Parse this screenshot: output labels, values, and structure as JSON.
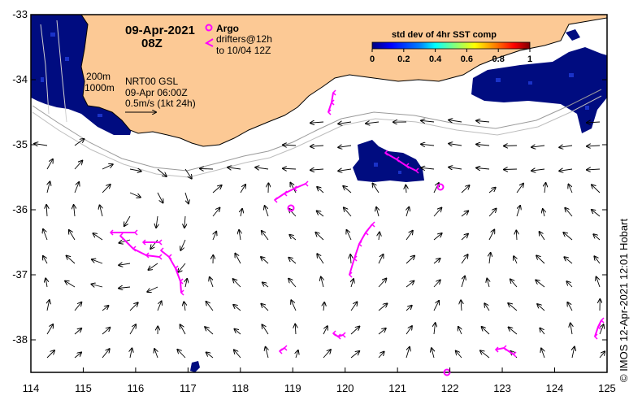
{
  "header": {
    "date": "09-Apr-2021",
    "time": "08Z"
  },
  "legend": {
    "argo_label": "Argo",
    "drifter_line1": "drifters@12h",
    "drifter_line2": "to 10/04 12Z",
    "argo_color": "#ff00ff",
    "drifter_color": "#ff00ff"
  },
  "colorbar": {
    "title": "std dev of 4hr SST comp",
    "ticks": [
      "0",
      "0.2",
      "0.4",
      "0.6",
      "0.8",
      "1"
    ],
    "colors": [
      "#00007f",
      "#0000ff",
      "#007fff",
      "#00ffff",
      "#7fff7f",
      "#ffff00",
      "#ff7f00",
      "#ff0000",
      "#7f0000"
    ]
  },
  "contours": {
    "line1": "200m",
    "line2": "1000m"
  },
  "source_info": {
    "line1": "NRT00 GSL",
    "line2": "09-Apr 06:00Z",
    "line3": "0.5m/s (1kt 24h)"
  },
  "x_axis": {
    "ticks": [
      "114",
      "115",
      "116",
      "117",
      "118",
      "119",
      "120",
      "121",
      "122",
      "123",
      "124",
      "125"
    ]
  },
  "y_axis": {
    "ticks": [
      "-33",
      "-34",
      "-35",
      "-36",
      "-37",
      "-38"
    ]
  },
  "credit": "© IMOS 12-Apr-2021 12:01 Hobart",
  "colors": {
    "land": "#fcc995",
    "sst_fill": "#000c80",
    "sst_speckle": "#1a32c8"
  }
}
